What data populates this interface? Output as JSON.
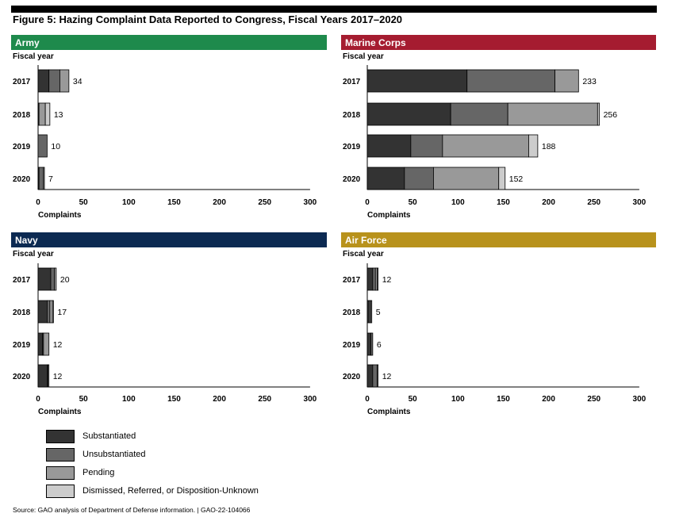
{
  "figure_title": "Figure 5: Hazing Complaint Data Reported to Congress, Fiscal Years 2017–2020",
  "source": "Source: GAO analysis of Department of Defense information.  |  GAO-22-104066",
  "legend": [
    {
      "name": "Substantiated",
      "color": "#333333"
    },
    {
      "name": "Unsubstantiated",
      "color": "#666666"
    },
    {
      "name": "Pending",
      "color": "#999999"
    },
    {
      "name": "Dismissed, Referred, or Disposition-Unknown",
      "color": "#cccccc"
    }
  ],
  "chart_data": [
    {
      "type": "bar",
      "orientation": "horizontal",
      "stacked": true,
      "title": "Army",
      "header_color": "#1e8a4c",
      "ylabel": "Fiscal year",
      "xlabel": "Complaints",
      "xlim": [
        0,
        300
      ],
      "xticks": [
        0,
        50,
        100,
        150,
        200,
        250,
        300
      ],
      "categories": [
        "2017",
        "2018",
        "2019",
        "2020"
      ],
      "series": [
        {
          "name": "Substantiated",
          "values": [
            12,
            1,
            0,
            1
          ]
        },
        {
          "name": "Unsubstantiated",
          "values": [
            12,
            0,
            10,
            5
          ]
        },
        {
          "name": "Pending",
          "values": [
            10,
            7,
            0,
            0
          ]
        },
        {
          "name": "Dismissed, Referred, or Disposition-Unknown",
          "values": [
            0,
            5,
            0,
            1
          ]
        }
      ],
      "totals": [
        34,
        13,
        10,
        7
      ]
    },
    {
      "type": "bar",
      "orientation": "horizontal",
      "stacked": true,
      "title": "Marine Corps",
      "header_color": "#a51c30",
      "ylabel": "Fiscal year",
      "xlabel": "Complaints",
      "xlim": [
        0,
        300
      ],
      "xticks": [
        0,
        50,
        100,
        150,
        200,
        250,
        300
      ],
      "categories": [
        "2017",
        "2018",
        "2019",
        "2020"
      ],
      "series": [
        {
          "name": "Substantiated",
          "values": [
            110,
            92,
            48,
            41
          ]
        },
        {
          "name": "Unsubstantiated",
          "values": [
            97,
            63,
            35,
            32
          ]
        },
        {
          "name": "Pending",
          "values": [
            26,
            99,
            95,
            72
          ]
        },
        {
          "name": "Dismissed, Referred, or Disposition-Unknown",
          "values": [
            0,
            2,
            10,
            7
          ]
        }
      ],
      "totals": [
        233,
        256,
        188,
        152
      ]
    },
    {
      "type": "bar",
      "orientation": "horizontal",
      "stacked": true,
      "title": "Navy",
      "header_color": "#0c2a52",
      "ylabel": "Fiscal year",
      "xlabel": "Complaints",
      "xlim": [
        0,
        300
      ],
      "xticks": [
        0,
        50,
        100,
        150,
        200,
        250,
        300
      ],
      "categories": [
        "2017",
        "2018",
        "2019",
        "2020"
      ],
      "series": [
        {
          "name": "Substantiated",
          "values": [
            14,
            10,
            5,
            10
          ]
        },
        {
          "name": "Unsubstantiated",
          "values": [
            4,
            3,
            1,
            1
          ]
        },
        {
          "name": "Pending",
          "values": [
            2,
            3,
            6,
            0
          ]
        },
        {
          "name": "Dismissed, Referred, or Disposition-Unknown",
          "values": [
            0,
            1,
            0,
            1
          ]
        }
      ],
      "totals": [
        20,
        17,
        12,
        12
      ]
    },
    {
      "type": "bar",
      "orientation": "horizontal",
      "stacked": true,
      "title": "Air Force",
      "header_color": "#b8921c",
      "ylabel": "Fiscal year",
      "xlabel": "Complaints",
      "xlim": [
        0,
        300
      ],
      "xticks": [
        0,
        50,
        100,
        150,
        200,
        250,
        300
      ],
      "categories": [
        "2017",
        "2018",
        "2019",
        "2020"
      ],
      "series": [
        {
          "name": "Substantiated",
          "values": [
            6,
            2,
            4,
            6
          ]
        },
        {
          "name": "Unsubstantiated",
          "values": [
            3,
            2,
            2,
            5
          ]
        },
        {
          "name": "Pending",
          "values": [
            2,
            0,
            0,
            0
          ]
        },
        {
          "name": "Dismissed, Referred, or Disposition-Unknown",
          "values": [
            1,
            1,
            0,
            1
          ]
        }
      ],
      "totals": [
        12,
        5,
        6,
        12
      ]
    }
  ]
}
